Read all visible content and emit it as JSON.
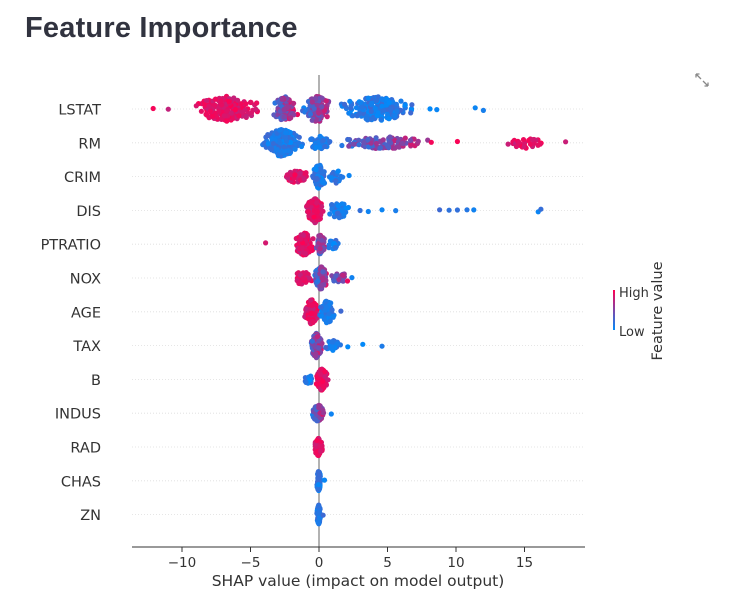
{
  "page": {
    "title": "Feature Importance"
  },
  "icons": {
    "fullscreen": "expand-icon"
  },
  "chart_data": {
    "type": "scatter",
    "subtype": "shap-beeswarm",
    "title": "",
    "xlabel": "SHAP value (impact on model output)",
    "ylabel": "",
    "xlim": [
      -13.7,
      19.4
    ],
    "xticks": [
      -10,
      -5,
      0,
      5,
      10,
      15
    ],
    "xtick_labels": [
      "−10",
      "−5",
      "0",
      "5",
      "10",
      "15"
    ],
    "grid": false,
    "colorbar": {
      "label": "Feature value",
      "high": "High",
      "low": "Low",
      "high_color": "#ff0052",
      "low_color": "#008bfb"
    },
    "colors": {
      "axis": "#333333",
      "zero_line": "#999999",
      "row_guide": "#dddddd"
    },
    "series": [
      {
        "feature": "LSTAT",
        "min": -12.1,
        "max": 12.0,
        "outliers": [
          8.1,
          8.6,
          11.4,
          12.0,
          -12.1,
          -11.0
        ],
        "clusters": [
          [
            -9.5,
            -4.0,
            0.9,
            200,
            "red"
          ],
          [
            -3.5,
            -1.5,
            0.9,
            120,
            "mixed"
          ],
          [
            -1.3,
            1.0,
            1.0,
            140,
            "mixed"
          ],
          [
            1.0,
            7.5,
            0.9,
            200,
            "blue"
          ]
        ]
      },
      {
        "feature": "RM",
        "min": -4.5,
        "max": 18.0,
        "outliers": [
          8.2,
          10.1,
          14.6,
          18.0
        ],
        "clusters": [
          [
            -4.5,
            -1.0,
            1.0,
            230,
            "blue"
          ],
          [
            -1.0,
            1.0,
            0.5,
            60,
            "blue"
          ],
          [
            1.0,
            8.5,
            0.45,
            120,
            "mixed"
          ],
          [
            13.0,
            17.5,
            0.4,
            28,
            "red"
          ]
        ]
      },
      {
        "feature": "CRIM",
        "min": -2.8,
        "max": 2.2,
        "outliers": [
          2.2
        ],
        "clusters": [
          [
            -2.8,
            -0.5,
            0.45,
            50,
            "red"
          ],
          [
            -0.5,
            0.5,
            0.9,
            140,
            "blue"
          ],
          [
            0.5,
            2.0,
            0.5,
            24,
            "blue"
          ]
        ]
      },
      {
        "feature": "DIS",
        "min": -1.0,
        "max": 16.2,
        "outliers": [
          3.0,
          3.6,
          4.6,
          5.6,
          8.8,
          9.5,
          10.1,
          10.8,
          11.3,
          16.0,
          16.2
        ],
        "clusters": [
          [
            -1.0,
            0.4,
            0.9,
            170,
            "red"
          ],
          [
            0.4,
            2.5,
            0.6,
            50,
            "blue"
          ]
        ]
      },
      {
        "feature": "PTRATIO",
        "min": -3.9,
        "max": 1.6,
        "outliers": [
          -3.9
        ],
        "clusters": [
          [
            -1.8,
            -0.3,
            0.85,
            120,
            "red"
          ],
          [
            -0.3,
            0.5,
            0.8,
            70,
            "mixed"
          ],
          [
            0.5,
            1.6,
            0.4,
            18,
            "blue"
          ]
        ]
      },
      {
        "feature": "NOX",
        "min": -2.1,
        "max": 2.4,
        "outliers": [
          2.4
        ],
        "clusters": [
          [
            -2.1,
            -0.4,
            0.5,
            50,
            "red"
          ],
          [
            -0.4,
            0.7,
            0.85,
            130,
            "mixed"
          ],
          [
            0.7,
            2.3,
            0.4,
            22,
            "mixed"
          ]
        ]
      },
      {
        "feature": "AGE",
        "min": -1.1,
        "max": 1.6,
        "outliers": [
          1.6
        ],
        "clusters": [
          [
            -1.1,
            0.0,
            0.9,
            150,
            "red"
          ],
          [
            0.0,
            1.2,
            0.85,
            100,
            "blue"
          ]
        ]
      },
      {
        "feature": "TAX",
        "min": -0.7,
        "max": 4.6,
        "outliers": [
          2.1,
          3.2,
          4.6
        ],
        "clusters": [
          [
            -0.7,
            0.3,
            0.9,
            140,
            "mixed"
          ],
          [
            0.3,
            1.8,
            0.4,
            30,
            "blue"
          ]
        ]
      },
      {
        "feature": "B",
        "min": -1.2,
        "max": 0.8,
        "outliers": [],
        "clusters": [
          [
            -1.2,
            -0.3,
            0.3,
            18,
            "blue"
          ],
          [
            -0.3,
            0.7,
            0.8,
            150,
            "red"
          ]
        ]
      },
      {
        "feature": "INDUS",
        "min": -0.6,
        "max": 0.9,
        "outliers": [
          0.9
        ],
        "clusters": [
          [
            -0.5,
            0.4,
            0.65,
            80,
            "mixed"
          ]
        ]
      },
      {
        "feature": "RAD",
        "min": -0.4,
        "max": 0.3,
        "outliers": [],
        "clusters": [
          [
            -0.4,
            0.3,
            0.65,
            70,
            "red"
          ]
        ]
      },
      {
        "feature": "CHAS",
        "min": -0.2,
        "max": 0.4,
        "outliers": [
          0.4
        ],
        "clusters": [
          [
            -0.2,
            0.15,
            0.75,
            80,
            "blue"
          ]
        ]
      },
      {
        "feature": "ZN",
        "min": -0.2,
        "max": 0.3,
        "outliers": [
          0.3
        ],
        "clusters": [
          [
            -0.2,
            0.15,
            0.7,
            60,
            "blue"
          ]
        ]
      }
    ]
  }
}
